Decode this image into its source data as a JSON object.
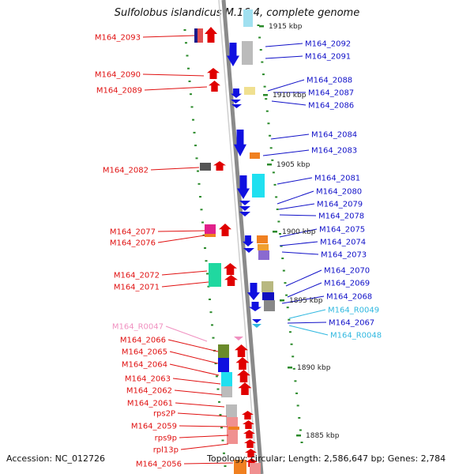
{
  "title": "Sulfolobus islandicus M.16.4, complete genome",
  "footer": {
    "accession": "Accession: NC_012726",
    "topology": "Topology: circular; Length: 2,586,647 bp; Genes: 2,784"
  },
  "colors": {
    "left_label": "#e01010",
    "right_label": "#1010c8",
    "rna_label": "#30b8e0",
    "trna_label": "#f090c0",
    "backbone": "#8a8a8a",
    "dot": "#2a8a2a",
    "gene_forward": "#e00000",
    "gene_reverse": "#1010e0"
  },
  "scale_labels": [
    "1915 kbp",
    "1910 kbp",
    "1905 kbp",
    "1900 kbp",
    "1895 kbp",
    "1890 kbp",
    "1885 kbp"
  ],
  "left_genes": [
    "M164_2093",
    "M164_2090",
    "M164_2089",
    "M164_2082",
    "M164_2077",
    "M164_2076",
    "M164_2072",
    "M164_2071",
    "M164_R0047",
    "M164_2066",
    "M164_2065",
    "M164_2064",
    "M164_2063",
    "M164_2062",
    "M164_2061",
    "rps2P",
    "M164_2059",
    "rps9p",
    "rpl13p",
    "M164_2056"
  ],
  "right_genes": [
    "M164_2092",
    "M164_2091",
    "M164_2088",
    "M164_2087",
    "M164_2086",
    "M164_2084",
    "M164_2083",
    "M164_2081",
    "M164_2080",
    "M164_2079",
    "M164_2078",
    "M164_2075",
    "M164_2074",
    "M164_2073",
    "M164_2070",
    "M164_2069",
    "M164_2068",
    "M164_R0049",
    "M164_2067",
    "M164_R0048"
  ]
}
